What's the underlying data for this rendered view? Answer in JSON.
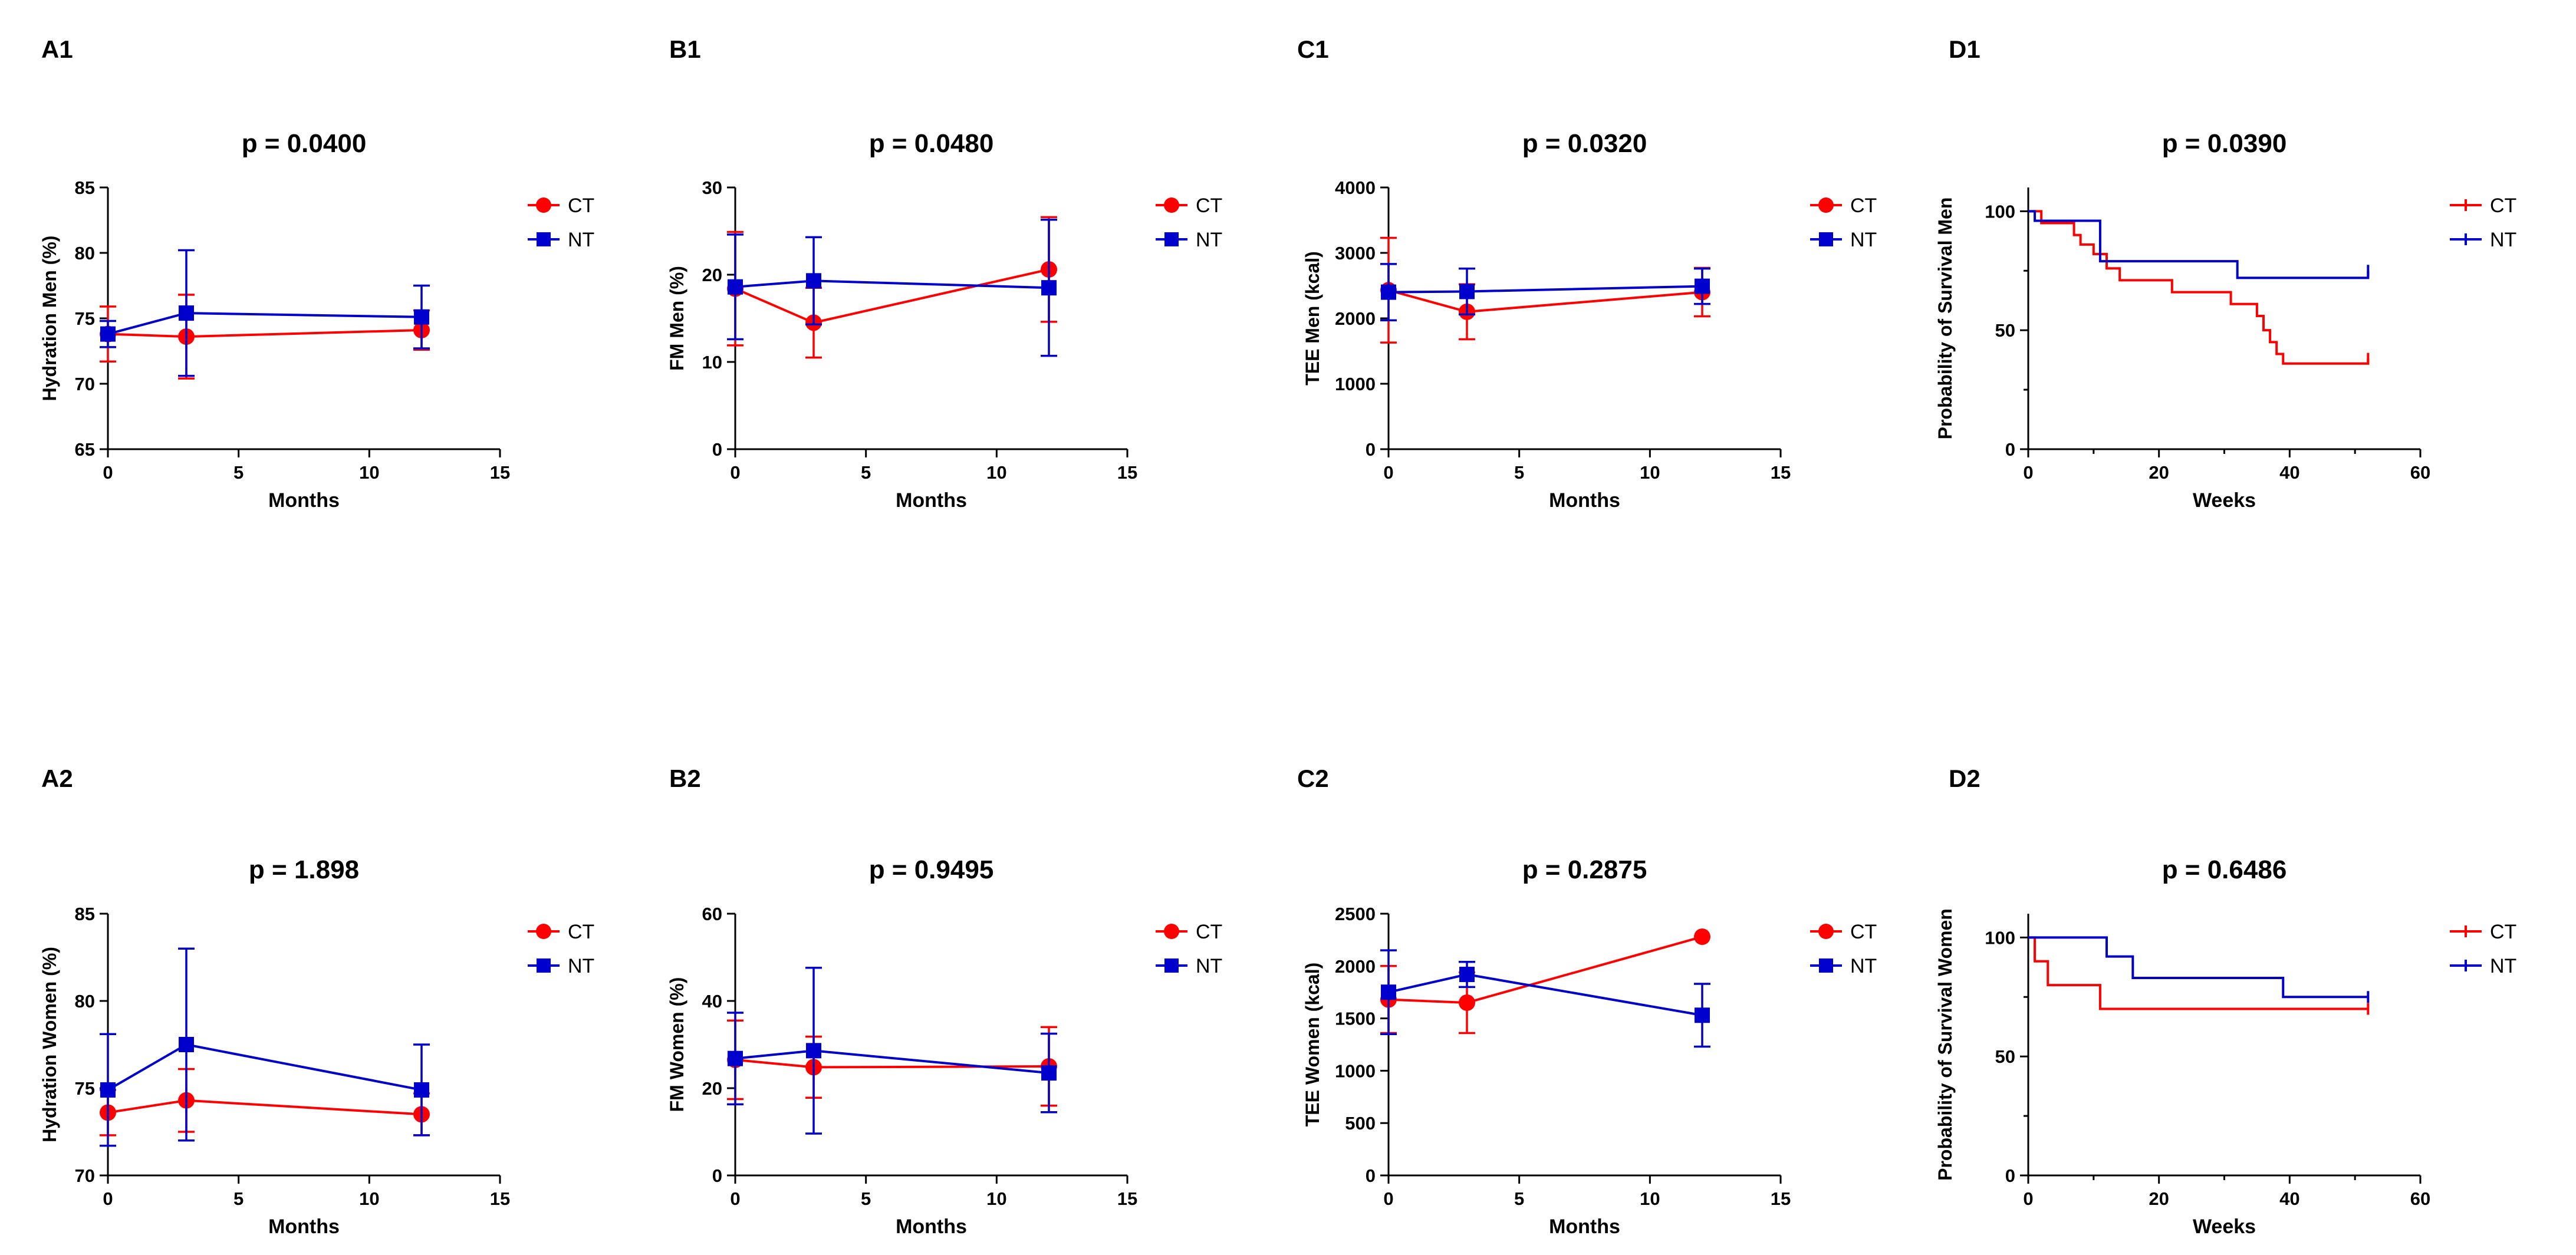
{
  "colors": {
    "CT": "#FF0000",
    "NT": "#0000CC",
    "axis": "#000000"
  },
  "chart_data": [
    {
      "id": "A1",
      "panel_label": "A1",
      "type": "line",
      "title": "p = 0.0400",
      "xlabel": "Months",
      "ylabel": "Hydration Men (%)",
      "xlim": [
        0,
        15
      ],
      "ylim": [
        65,
        85
      ],
      "xticks": [
        "0",
        "5",
        "10",
        "15"
      ],
      "yticks": [
        "65",
        "70",
        "75",
        "80",
        "85"
      ],
      "legend": [
        "CT",
        "NT"
      ],
      "series": [
        {
          "name": "CT",
          "marker": "circle",
          "x": [
            0,
            3,
            12
          ],
          "y": [
            73.8,
            73.6,
            74.1
          ],
          "err": [
            2.1,
            3.2,
            1.5
          ]
        },
        {
          "name": "NT",
          "marker": "square",
          "x": [
            0,
            3,
            12
          ],
          "y": [
            73.8,
            75.4,
            75.1
          ],
          "err": [
            1.0,
            4.8,
            2.4
          ]
        }
      ]
    },
    {
      "id": "B1",
      "panel_label": "B1",
      "type": "line",
      "title": "p = 0.0480",
      "xlabel": "Months",
      "ylabel": "FM Men (%)",
      "xlim": [
        0,
        15
      ],
      "ylim": [
        0,
        30
      ],
      "xticks": [
        "0",
        "5",
        "10",
        "15"
      ],
      "yticks": [
        "0",
        "10",
        "20",
        "30"
      ],
      "legend": [
        "CT",
        "NT"
      ],
      "series": [
        {
          "name": "CT",
          "marker": "circle",
          "x": [
            0,
            3,
            12
          ],
          "y": [
            18.4,
            14.5,
            20.6
          ],
          "err": [
            6.5,
            4.0,
            6.0
          ]
        },
        {
          "name": "NT",
          "marker": "square",
          "x": [
            0,
            3,
            12
          ],
          "y": [
            18.6,
            19.3,
            18.5
          ],
          "err": [
            6.0,
            5.0,
            7.8
          ]
        }
      ]
    },
    {
      "id": "C1",
      "panel_label": "C1",
      "type": "line",
      "title": "p = 0.0320",
      "xlabel": "Months",
      "ylabel": "TEE Men (kcal)",
      "xlim": [
        0,
        15
      ],
      "ylim": [
        0,
        4000
      ],
      "xticks": [
        "0",
        "5",
        "10",
        "15"
      ],
      "yticks": [
        "0",
        "1000",
        "2000",
        "3000",
        "4000"
      ],
      "legend": [
        "CT",
        "NT"
      ],
      "series": [
        {
          "name": "CT",
          "marker": "circle",
          "x": [
            0,
            3,
            12
          ],
          "y": [
            2430,
            2100,
            2400
          ],
          "err": [
            800,
            420,
            370
          ]
        },
        {
          "name": "NT",
          "marker": "square",
          "x": [
            0,
            3,
            12
          ],
          "y": [
            2400,
            2410,
            2490
          ],
          "err": [
            430,
            350,
            270
          ]
        }
      ]
    },
    {
      "id": "D1",
      "panel_label": "D1",
      "type": "step",
      "title": "p = 0.0390",
      "xlabel": "Weeks",
      "ylabel": "Probability of Survival Men",
      "xlim": [
        0,
        60
      ],
      "ylim": [
        0,
        110
      ],
      "xticks": [
        "0",
        "20",
        "40",
        "60"
      ],
      "yticks": [
        "0",
        "50",
        "100"
      ],
      "legend": [
        "CT",
        "NT"
      ],
      "series": [
        {
          "name": "CT",
          "x": [
            0,
            2,
            7,
            8,
            10,
            12,
            14,
            22,
            31,
            35,
            36,
            37,
            38,
            39,
            51,
            52
          ],
          "y": [
            100,
            95,
            90,
            86,
            82,
            76,
            71,
            66,
            61,
            56,
            50,
            45,
            40,
            36,
            36,
            38
          ]
        },
        {
          "name": "NT",
          "x": [
            0,
            1,
            11,
            32,
            52
          ],
          "y": [
            100,
            96,
            79,
            72,
            75
          ]
        }
      ]
    },
    {
      "id": "A2",
      "panel_label": "A2",
      "type": "line",
      "title": "p = 1.898",
      "xlabel": "Months",
      "ylabel": "Hydration Women (%)",
      "xlim": [
        0,
        15
      ],
      "ylim": [
        70,
        85
      ],
      "xticks": [
        "0",
        "5",
        "10",
        "15"
      ],
      "yticks": [
        "70",
        "75",
        "80",
        "85"
      ],
      "legend": [
        "CT",
        "NT"
      ],
      "series": [
        {
          "name": "CT",
          "marker": "circle",
          "x": [
            0,
            3,
            12
          ],
          "y": [
            73.6,
            74.3,
            73.5
          ],
          "err": [
            1.3,
            1.8,
            1.2
          ]
        },
        {
          "name": "NT",
          "marker": "square",
          "x": [
            0,
            3,
            12
          ],
          "y": [
            74.9,
            77.5,
            74.9
          ],
          "err": [
            3.2,
            5.5,
            2.6
          ]
        }
      ]
    },
    {
      "id": "B2",
      "panel_label": "B2",
      "type": "line",
      "title": "p = 0.9495",
      "xlabel": "Months",
      "ylabel": "FM Women (%)",
      "xlim": [
        0,
        15
      ],
      "ylim": [
        0,
        60
      ],
      "xticks": [
        "0",
        "5",
        "10",
        "15"
      ],
      "yticks": [
        "0",
        "20",
        "40",
        "60"
      ],
      "legend": [
        "CT",
        "NT"
      ],
      "series": [
        {
          "name": "CT",
          "marker": "circle",
          "x": [
            0,
            3,
            12
          ],
          "y": [
            26.5,
            24.8,
            25.0
          ],
          "err": [
            9.0,
            7.0,
            9.0
          ]
        },
        {
          "name": "NT",
          "marker": "square",
          "x": [
            0,
            3,
            12
          ],
          "y": [
            26.8,
            28.6,
            23.5
          ],
          "err": [
            10.5,
            19.0,
            9.0
          ]
        }
      ]
    },
    {
      "id": "C2",
      "panel_label": "C2",
      "type": "line",
      "title": "p = 0.2875",
      "xlabel": "Months",
      "ylabel": "TEE Women (kcal)",
      "xlim": [
        0,
        15
      ],
      "ylim": [
        0,
        2500
      ],
      "xticks": [
        "0",
        "5",
        "10",
        "15"
      ],
      "yticks": [
        "0",
        "500",
        "1000",
        "1500",
        "2000",
        "2500"
      ],
      "legend": [
        "CT",
        "NT"
      ],
      "series": [
        {
          "name": "CT",
          "marker": "circle",
          "x": [
            0,
            3,
            12
          ],
          "y": [
            1680,
            1650,
            2280
          ],
          "err": [
            320,
            290,
            0
          ]
        },
        {
          "name": "NT",
          "marker": "square",
          "x": [
            0,
            3,
            12
          ],
          "y": [
            1750,
            1920,
            1530
          ],
          "err": [
            400,
            120,
            300
          ]
        }
      ]
    },
    {
      "id": "D2",
      "panel_label": "D2",
      "type": "step",
      "title": "p = 0.6486",
      "xlabel": "Weeks",
      "ylabel": "Probability of Survival Women",
      "xlim": [
        0,
        60
      ],
      "ylim": [
        0,
        110
      ],
      "xticks": [
        "0",
        "20",
        "40",
        "60"
      ],
      "yticks": [
        "0",
        "50",
        "100"
      ],
      "legend": [
        "CT",
        "NT"
      ],
      "series": [
        {
          "name": "CT",
          "x": [
            0,
            1,
            3,
            11,
            52
          ],
          "y": [
            100,
            90,
            80,
            70,
            70
          ]
        },
        {
          "name": "NT",
          "x": [
            0,
            12,
            16,
            39,
            52
          ],
          "y": [
            100,
            92,
            83,
            75,
            75
          ]
        }
      ]
    }
  ]
}
